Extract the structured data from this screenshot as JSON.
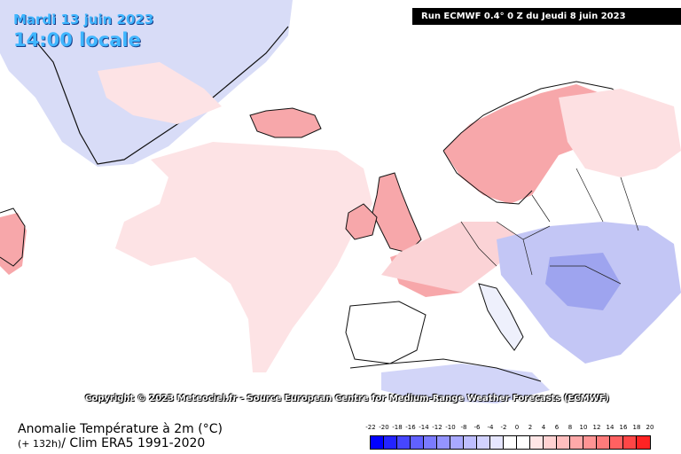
{
  "header": {
    "date": "Mardi 13 juin 2023",
    "time": "14:00 locale",
    "run": "Run ECMWF 0.4° 0 Z du Jeudi 8 juin 2023"
  },
  "copyright": "Copyright © 2023 Meteociel.fr - Source European Centre for Medium-Range Weather Forecasts (ECMWF)",
  "footer": {
    "title": "Anomalie Température à 2m (°C)",
    "lead": "(+ 132h)",
    "clim": "/ Clim ERA5 1991-2020"
  },
  "legend": {
    "labels": [
      "-22",
      "-20",
      "-18",
      "-16",
      "-14",
      "-12",
      "-10",
      "-8",
      "-6",
      "-4",
      "-2",
      "0",
      "2",
      "4",
      "6",
      "8",
      "10",
      "12",
      "14",
      "16",
      "18",
      "20"
    ],
    "colors": [
      "#0000ff",
      "#2323ff",
      "#4646ff",
      "#6161ff",
      "#7b7bff",
      "#9494ff",
      "#a9a9ff",
      "#bebeff",
      "#d2d2ff",
      "#e6e6ff",
      "#ffffff",
      "#ffffff",
      "#ffe6e6",
      "#ffd2d2",
      "#ffbebe",
      "#ffa9a9",
      "#ff9494",
      "#ff7b7b",
      "#ff6161",
      "#ff4646",
      "#ff2323"
    ]
  },
  "colors": {
    "title_blue": "#3fb6ff",
    "warm_anomaly": "#ffbebe",
    "cold_anomaly": "#bebeff"
  }
}
